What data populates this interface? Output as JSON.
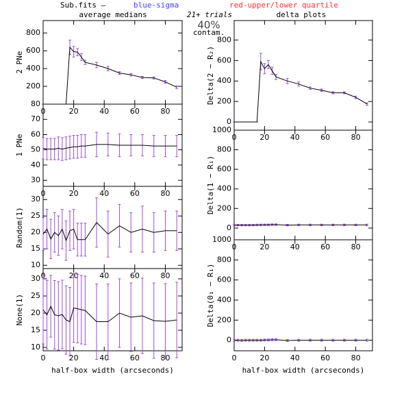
{
  "header": {
    "file": "Sub.fits  –",
    "blue": "blue-sigma",
    "red": "red-upper/lower quartile",
    "left_title": "average medians",
    "trials": "21+ trials",
    "contam_pct": "40%",
    "contam": "contam.",
    "right_title": "delta plots"
  },
  "chart_data": [
    {
      "type": "line",
      "ylabel": "2 PNe",
      "x": [
        0,
        2.5,
        5,
        7.5,
        10,
        12.5,
        15,
        17.5,
        20,
        22.5,
        25,
        27.5,
        35,
        42.5,
        50,
        57.5,
        65,
        72.5,
        80,
        87.5
      ],
      "values": [
        0,
        0,
        0,
        0,
        0,
        0,
        0,
        640,
        590,
        585,
        530,
        470,
        440,
        400,
        350,
        330,
        300,
        295,
        250,
        190
      ],
      "errors": [
        0,
        0,
        0,
        0,
        0,
        0,
        0,
        80,
        60,
        40,
        40,
        25,
        30,
        25,
        15,
        15,
        12,
        12,
        15,
        15
      ],
      "color": "#000000",
      "error_color": "#9a4fd6",
      "xlim": [
        0,
        91
      ],
      "xticks": [
        0,
        20,
        40,
        60,
        80
      ],
      "ylim": [
        0,
        940
      ],
      "yticks": [
        200,
        400,
        600,
        800
      ]
    },
    {
      "type": "line",
      "ylabel": "1 PNe",
      "x": [
        0,
        2.5,
        5,
        7.5,
        10,
        12.5,
        15,
        17.5,
        20,
        22.5,
        25,
        27.5,
        35,
        42.5,
        50,
        57.5,
        65,
        72.5,
        80,
        87.5
      ],
      "values": [
        51,
        50.5,
        50.5,
        50.5,
        51,
        50.5,
        51,
        51.5,
        52,
        52,
        52.5,
        52.5,
        53.5,
        53.5,
        53,
        53,
        53,
        52.5,
        52.5,
        52.5
      ],
      "errors": [
        7,
        7,
        7,
        7,
        7.5,
        7.5,
        7.5,
        7.5,
        7.5,
        7.5,
        7.5,
        7.5,
        8,
        7.5,
        7.5,
        7,
        7,
        7,
        7,
        7
      ],
      "color": "#000000",
      "error_color": "#9a4fd6",
      "xlim": [
        0,
        91
      ],
      "xticks": [
        0,
        20,
        40,
        60,
        80
      ],
      "ylim": [
        26,
        80
      ],
      "yticks": [
        30,
        40,
        50,
        60,
        70,
        80
      ]
    },
    {
      "type": "line",
      "ylabel": "Random(1)",
      "x": [
        0,
        2.5,
        5,
        7.5,
        10,
        12.5,
        15,
        17.5,
        20,
        22.5,
        25,
        27.5,
        35,
        42.5,
        50,
        57.5,
        65,
        72.5,
        80,
        87.5
      ],
      "values": [
        19.5,
        21,
        18,
        20,
        19,
        21,
        17.5,
        20.5,
        21,
        17.8,
        17.8,
        17.8,
        23,
        19.5,
        22,
        20,
        21,
        20,
        20.5,
        20.5
      ],
      "errors": [
        5,
        6,
        6,
        6,
        6,
        6,
        6,
        6,
        6,
        5,
        5,
        5,
        7.5,
        7,
        6.5,
        6,
        7,
        6,
        6,
        6
      ],
      "color": "#000000",
      "error_color": "#9a4fd6",
      "xlim": [
        0,
        91
      ],
      "xticks": [
        0,
        20,
        40,
        60,
        80
      ],
      "ylim": [
        9,
        34
      ],
      "yticks": [
        10,
        15,
        20,
        25,
        30
      ]
    },
    {
      "type": "line",
      "ylabel": "None(1)",
      "xlabel": "half-box width (arcseconds)",
      "x": [
        0,
        2.5,
        5,
        7.5,
        10,
        12.5,
        15,
        17.5,
        20,
        22.5,
        25,
        27.5,
        35,
        42.5,
        50,
        57.5,
        65,
        72.5,
        80,
        87.5
      ],
      "values": [
        21,
        19.5,
        22,
        19.5,
        19.2,
        19.6,
        18,
        17.5,
        21.5,
        21.3,
        21,
        20.8,
        17.5,
        17.5,
        20,
        18.8,
        19.2,
        17.8,
        17.6,
        18
      ],
      "errors": [
        10,
        10,
        9,
        10,
        10,
        10,
        10,
        10,
        10,
        10,
        10,
        10,
        11,
        11,
        10,
        10,
        11,
        11,
        11,
        11
      ],
      "color": "#000000",
      "error_color": "#9a4fd6",
      "xlim": [
        0,
        91
      ],
      "xticks": [
        0,
        20,
        40,
        60,
        80
      ],
      "ylim": [
        9,
        33
      ],
      "yticks": [
        10,
        15,
        20,
        25,
        30
      ]
    },
    {
      "type": "line",
      "ylabel": "Delta(2 − R₂)",
      "x": [
        0,
        2.5,
        5,
        7.5,
        10,
        12.5,
        15,
        17.5,
        20,
        22.5,
        25,
        27.5,
        35,
        42.5,
        50,
        57.5,
        65,
        72.5,
        80,
        87.5
      ],
      "values": [
        0,
        0,
        0,
        0,
        0,
        0,
        0,
        590,
        520,
        560,
        500,
        440,
        400,
        370,
        330,
        310,
        285,
        285,
        240,
        175
      ],
      "errors": [
        0,
        0,
        0,
        0,
        0,
        0,
        0,
        80,
        50,
        40,
        35,
        25,
        25,
        20,
        12,
        12,
        10,
        10,
        12,
        12
      ],
      "color": "#000000",
      "error_color": "#9a4fd6",
      "xlim": [
        0,
        91
      ],
      "xticks": [
        0,
        20,
        40,
        60,
        80
      ],
      "ylim": [
        -80,
        990
      ],
      "yticks": [
        0,
        200,
        400,
        600,
        800
      ]
    },
    {
      "type": "line",
      "ylabel": "Delta(1 − R₁)",
      "x": [
        0,
        2.5,
        5,
        7.5,
        10,
        12.5,
        15,
        17.5,
        20,
        22.5,
        25,
        27.5,
        35,
        42.5,
        50,
        57.5,
        65,
        72.5,
        80,
        87.5
      ],
      "values": [
        30,
        30,
        30,
        30,
        30,
        30,
        32,
        32,
        33,
        33,
        35,
        35,
        30,
        32,
        32,
        32,
        32,
        32,
        32,
        32
      ],
      "errors": [
        8,
        8,
        8,
        8,
        8,
        8,
        8,
        8,
        8,
        8,
        8,
        8,
        8,
        8,
        8,
        8,
        8,
        8,
        8,
        8
      ],
      "color": "#000000",
      "error_color": "#9a4fd6",
      "xlim": [
        0,
        91
      ],
      "xticks": [
        0,
        20,
        40,
        60,
        80
      ],
      "ylim": [
        -120,
        1000
      ],
      "yticks": [
        0,
        200,
        400,
        600,
        800,
        1000
      ]
    },
    {
      "type": "line",
      "ylabel": "Delta(0₁ − R₁)",
      "xlabel": "half-box width (arcseconds)",
      "x": [
        0,
        2.5,
        5,
        7.5,
        10,
        12.5,
        15,
        17.5,
        20,
        22.5,
        25,
        27.5,
        35,
        42.5,
        50,
        57.5,
        65,
        72.5,
        80,
        87.5
      ],
      "values": [
        0,
        0,
        -2,
        0,
        0,
        0,
        0,
        0,
        2,
        3,
        5,
        5,
        -3,
        0,
        0,
        0,
        0,
        0,
        0,
        0
      ],
      "errors": [
        10,
        10,
        10,
        10,
        10,
        10,
        10,
        10,
        10,
        10,
        10,
        10,
        10,
        10,
        10,
        10,
        10,
        10,
        10,
        10
      ],
      "color": "#000000",
      "error_color": "#9a4fd6",
      "xlim": [
        0,
        91
      ],
      "xticks": [
        0,
        20,
        40,
        60,
        80
      ],
      "ylim": [
        -105,
        1000
      ],
      "yticks": [
        0,
        200,
        400,
        600,
        800,
        1000
      ]
    }
  ]
}
